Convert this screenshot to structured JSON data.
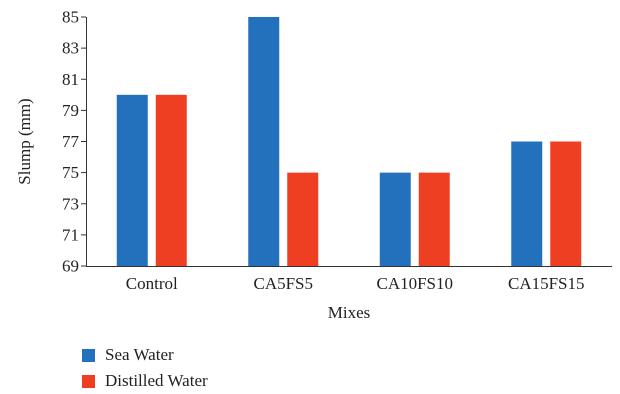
{
  "chart_data": {
    "type": "bar",
    "categories": [
      "Control",
      "CA5FS5",
      "CA10FS10",
      "CA15FS15"
    ],
    "series": [
      {
        "name": "Sea Water",
        "values": [
          80,
          85,
          75,
          77
        ],
        "color": "#2370bd"
      },
      {
        "name": "Distilled Water",
        "values": [
          80,
          75,
          75,
          77
        ],
        "color": "#ee3f23"
      }
    ],
    "title": "",
    "xlabel": "Mixes",
    "ylabel": "Slump (mm)",
    "ylim": [
      69,
      85
    ],
    "yticks": [
      69,
      71,
      73,
      75,
      77,
      79,
      81,
      83,
      85
    ],
    "grid": false,
    "legend_position": "bottom-left"
  }
}
